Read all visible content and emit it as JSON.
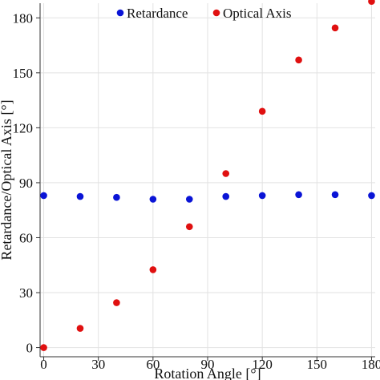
{
  "chart_data": {
    "type": "scatter",
    "xlabel": "Rotation Angle [°]",
    "ylabel": "Retardance/Optical Axis [°]",
    "xlim": [
      -2,
      182
    ],
    "ylim": [
      -5,
      188
    ],
    "xticks": [
      0,
      30,
      60,
      90,
      120,
      150,
      180
    ],
    "yticks": [
      0,
      30,
      60,
      90,
      120,
      150,
      180
    ],
    "grid": true,
    "legend_position": "top",
    "series": [
      {
        "name": "Retardance",
        "color": "#0a14d6",
        "x": [
          0,
          20,
          40,
          60,
          80,
          100,
          120,
          140,
          160,
          180
        ],
        "y": [
          83,
          82.5,
          82,
          81,
          81,
          82.5,
          83,
          83.5,
          83.5,
          83
        ]
      },
      {
        "name": "Optical Axis",
        "color": "#e01010",
        "x": [
          0,
          20,
          40,
          60,
          80,
          100,
          120,
          140,
          160,
          180
        ],
        "y": [
          0,
          10.5,
          24.5,
          42.5,
          66,
          95,
          129,
          157,
          174.5,
          189
        ]
      }
    ]
  }
}
